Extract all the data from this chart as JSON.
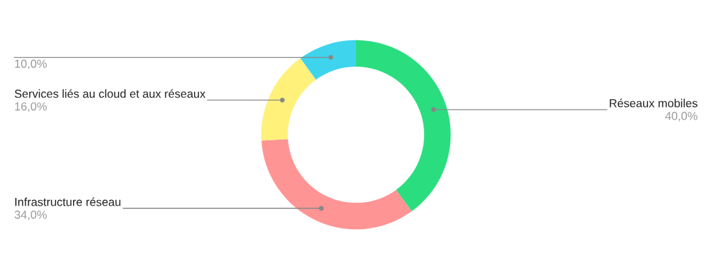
{
  "chart_data": {
    "type": "donut",
    "categories": [
      "Réseaux mobiles",
      "Infrastructure réseau",
      "Services liés au cloud et aux réseaux",
      null
    ],
    "values": [
      40,
      34,
      16,
      10
    ],
    "colors": [
      "#2ade7f",
      "#ff9494",
      "#fff17a",
      "#3fd4ee"
    ],
    "value_labels": [
      "40,0%",
      "34,0%",
      "16,0%",
      "10,0%"
    ]
  }
}
